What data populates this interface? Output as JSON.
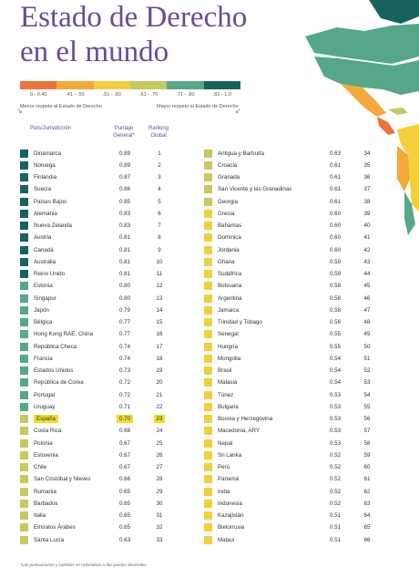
{
  "title_line1": "Estado de Derecho",
  "title_line2": "en el mundo",
  "legend": {
    "segments": [
      {
        "label": "0 - 0.40",
        "color": "#e9733a"
      },
      {
        "label": ".41 - .50",
        "color": "#f4a93a"
      },
      {
        "label": ".51 - .60",
        "color": "#f3cf3c"
      },
      {
        "label": ".61 - .70",
        "color": "#c6c95f"
      },
      {
        "label": ".71 - .80",
        "color": "#56a788"
      },
      {
        "label": ".81 - 1.0",
        "color": "#16635e"
      }
    ],
    "low_label": "Menor respeto al Estado de Derecho",
    "high_label": "Mayor respeto al Estado de Derecho"
  },
  "headers": {
    "country": "País/Jurisdicción",
    "score": "Puntaje General*",
    "rank": "Ranking Global"
  },
  "highlight_country": "España",
  "left_rows": [
    {
      "country": "Dinamarca",
      "score": "0.89",
      "rank": "1"
    },
    {
      "country": "Noruega",
      "score": "0.89",
      "rank": "2"
    },
    {
      "country": "Finlandia",
      "score": "0.87",
      "rank": "3"
    },
    {
      "country": "Suecia",
      "score": "0.86",
      "rank": "4"
    },
    {
      "country": "Países Bajos",
      "score": "0.85",
      "rank": "5"
    },
    {
      "country": "Alemania",
      "score": "0.83",
      "rank": "6"
    },
    {
      "country": "Nueva Zelanda",
      "score": "0.83",
      "rank": "7"
    },
    {
      "country": "Austria",
      "score": "0.81",
      "rank": "8"
    },
    {
      "country": "Canadá",
      "score": "0.81",
      "rank": "9"
    },
    {
      "country": "Australia",
      "score": "0.81",
      "rank": "10"
    },
    {
      "country": "Reino Unido",
      "score": "0.81",
      "rank": "11"
    },
    {
      "country": "Estonia",
      "score": "0.80",
      "rank": "12"
    },
    {
      "country": "Singapur",
      "score": "0.80",
      "rank": "13"
    },
    {
      "country": "Japón",
      "score": "0.79",
      "rank": "14"
    },
    {
      "country": "Bélgica",
      "score": "0.77",
      "rank": "15"
    },
    {
      "country": "Hong Kong RAE, China",
      "score": "0.77",
      "rank": "16"
    },
    {
      "country": "República Checa",
      "score": "0.74",
      "rank": "17"
    },
    {
      "country": "Francia",
      "score": "0.74",
      "rank": "18"
    },
    {
      "country": "Estados Unidos",
      "score": "0.73",
      "rank": "19"
    },
    {
      "country": "República de Corea",
      "score": "0.72",
      "rank": "20"
    },
    {
      "country": "Portugal",
      "score": "0.72",
      "rank": "21"
    },
    {
      "country": "Uruguay",
      "score": "0.71",
      "rank": "22"
    },
    {
      "country": "España",
      "score": "0.70",
      "rank": "23"
    },
    {
      "country": "Costa Rica",
      "score": "0.68",
      "rank": "24"
    },
    {
      "country": "Polonia",
      "score": "0.67",
      "rank": "25"
    },
    {
      "country": "Eslovenia",
      "score": "0.67",
      "rank": "26"
    },
    {
      "country": "Chile",
      "score": "0.67",
      "rank": "27"
    },
    {
      "country": "San Cristóbal y Nieves",
      "score": "0.66",
      "rank": "28"
    },
    {
      "country": "Rumania",
      "score": "0.65",
      "rank": "29"
    },
    {
      "country": "Barbados",
      "score": "0.65",
      "rank": "30"
    },
    {
      "country": "Italia",
      "score": "0.65",
      "rank": "31"
    },
    {
      "country": "Emiratos Árabes",
      "score": "0.65",
      "rank": "32"
    },
    {
      "country": "Santa Lucía",
      "score": "0.63",
      "rank": "33"
    }
  ],
  "right_rows": [
    {
      "country": "Antigua y Barbuda",
      "score": "0.63",
      "rank": "34"
    },
    {
      "country": "Croacia",
      "score": "0.61",
      "rank": "35"
    },
    {
      "country": "Granada",
      "score": "0.61",
      "rank": "36"
    },
    {
      "country": "San Vicente y las Granadinas",
      "score": "0.61",
      "rank": "37"
    },
    {
      "country": "Georgia",
      "score": "0.61",
      "rank": "38"
    },
    {
      "country": "Grecia",
      "score": "0.60",
      "rank": "39"
    },
    {
      "country": "Bahamas",
      "score": "0.60",
      "rank": "40"
    },
    {
      "country": "Dominica",
      "score": "0.60",
      "rank": "41"
    },
    {
      "country": "Jordania",
      "score": "0.60",
      "rank": "42"
    },
    {
      "country": "Ghana",
      "score": "0.59",
      "rank": "43"
    },
    {
      "country": "Sudáfrica",
      "score": "0.59",
      "rank": "44"
    },
    {
      "country": "Botsuana",
      "score": "0.58",
      "rank": "45"
    },
    {
      "country": "Argentina",
      "score": "0.58",
      "rank": "46"
    },
    {
      "country": "Jamaica",
      "score": "0.58",
      "rank": "47"
    },
    {
      "country": "Trinidad y Tobago",
      "score": "0.56",
      "rank": "48"
    },
    {
      "country": "Senegal",
      "score": "0.55",
      "rank": "49"
    },
    {
      "country": "Hungría",
      "score": "0.55",
      "rank": "50"
    },
    {
      "country": "Mongolia",
      "score": "0.54",
      "rank": "51"
    },
    {
      "country": "Brasil",
      "score": "0.54",
      "rank": "52"
    },
    {
      "country": "Malasia",
      "score": "0.54",
      "rank": "53"
    },
    {
      "country": "Túnez",
      "score": "0.53",
      "rank": "54"
    },
    {
      "country": "Bulgaria",
      "score": "0.53",
      "rank": "55"
    },
    {
      "country": "Bosnia y Herzegovina",
      "score": "0.53",
      "rank": "56"
    },
    {
      "country": "Macedonia, ARY",
      "score": "0.53",
      "rank": "57"
    },
    {
      "country": "Nepal",
      "score": "0.53",
      "rank": "58"
    },
    {
      "country": "Sri Lanka",
      "score": "0.52",
      "rank": "59"
    },
    {
      "country": "Perú",
      "score": "0.52",
      "rank": "60"
    },
    {
      "country": "Panamá",
      "score": "0.52",
      "rank": "61"
    },
    {
      "country": "India",
      "score": "0.52",
      "rank": "62"
    },
    {
      "country": "Indonesia",
      "score": "0.52",
      "rank": "63"
    },
    {
      "country": "Kazajistán",
      "score": "0.51",
      "rank": "64"
    },
    {
      "country": "Bielorrusia",
      "score": "0.51",
      "rank": "65"
    },
    {
      "country": "Malaui",
      "score": "0.51",
      "rank": "66"
    }
  ],
  "footnote": "*Las puntuaciones y cambios se redondean a dos puntos decimales."
}
